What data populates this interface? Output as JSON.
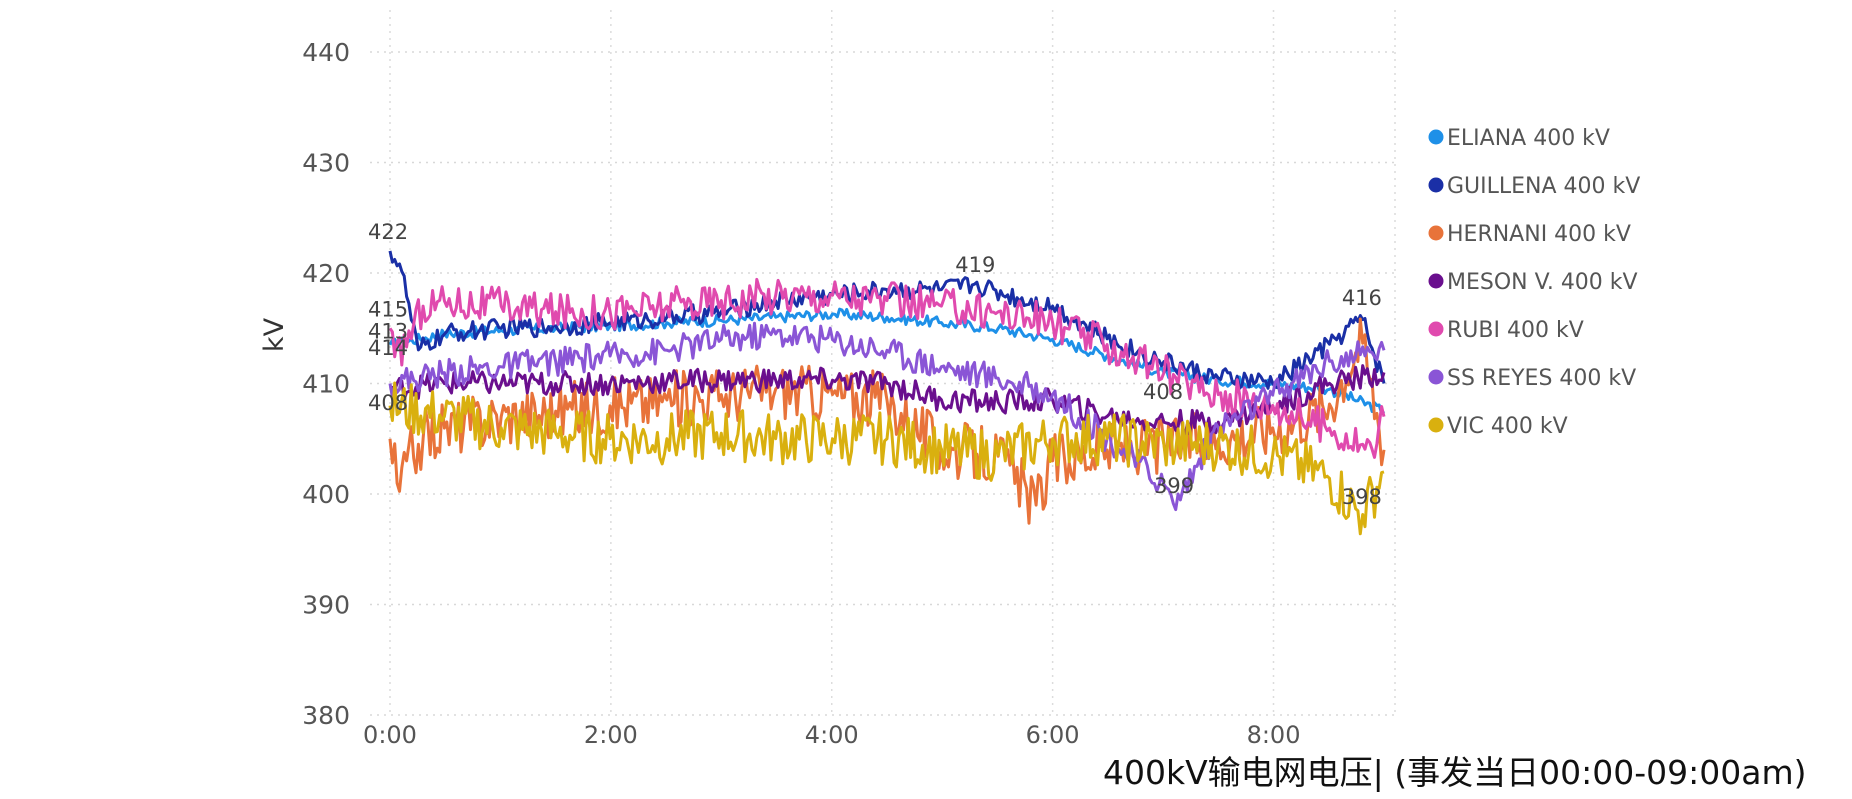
{
  "caption": "400kV输电网电压| (事发当日00:00-09:00am)",
  "chart_data": {
    "type": "line",
    "ylabel": "kV",
    "xlabel": "",
    "ylim": [
      380,
      440
    ],
    "xlim": [
      0,
      9.1
    ],
    "yticks": [
      380,
      390,
      400,
      410,
      420,
      430,
      440
    ],
    "ytick_labels": [
      "380",
      "390",
      "400",
      "410",
      "420",
      "430",
      "440"
    ],
    "xticks": [
      0,
      2,
      4,
      6,
      8
    ],
    "xtick_labels": [
      "0:00",
      "2:00",
      "4:00",
      "6:00",
      "8:00"
    ],
    "grid": true,
    "legend_position": "right",
    "series": [
      {
        "name": "ELIANA 400 kV",
        "color": "#1E90E8",
        "x": [
          0,
          0.5,
          1,
          1.5,
          2,
          2.5,
          3,
          3.5,
          4,
          4.5,
          5,
          5.5,
          6,
          6.5,
          7,
          7.5,
          8,
          8.5,
          9
        ],
        "y": [
          413.5,
          414.5,
          414.8,
          415,
          415.2,
          415.5,
          415.7,
          416,
          416.3,
          416,
          415.5,
          415,
          414,
          412.5,
          411,
          410.3,
          410,
          409.5,
          407.5
        ]
      },
      {
        "name": "GUILLENA 400 kV",
        "color": "#1A2FA6",
        "x": [
          0,
          0.1,
          0.25,
          0.5,
          1,
          1.5,
          2,
          2.5,
          3,
          3.5,
          4,
          4.5,
          5,
          5.3,
          5.6,
          6,
          6.5,
          7,
          7.5,
          8,
          8.5,
          8.8,
          9
        ],
        "y": [
          422,
          420.5,
          413,
          414.5,
          415,
          415.2,
          415.5,
          416,
          416.5,
          417.5,
          418,
          418.5,
          418.5,
          419,
          418,
          417,
          414,
          412,
          410.5,
          410,
          413.5,
          416,
          410
        ]
      },
      {
        "name": "HERNANI 400 kV",
        "color": "#E8733A",
        "x": [
          0,
          0.08,
          0.15,
          0.3,
          0.5,
          1,
          1.5,
          2,
          2.5,
          3,
          3.5,
          4,
          4.5,
          5,
          5.5,
          5.85,
          6,
          6.5,
          7,
          7.5,
          8,
          8.5,
          8.8,
          9
        ],
        "y": [
          405,
          400,
          403,
          405,
          406,
          407,
          407.5,
          408,
          408.5,
          409,
          409.5,
          409,
          408.5,
          404,
          403.5,
          399,
          403,
          404,
          404.5,
          405,
          406,
          408,
          414,
          404
        ]
      },
      {
        "name": "MESON V. 400 kV",
        "color": "#6A0F8E",
        "x": [
          0,
          0.5,
          1,
          1.5,
          2,
          2.5,
          3,
          3.5,
          4,
          4.5,
          5,
          5.5,
          6,
          6.5,
          7,
          7.5,
          8,
          8.5,
          9
        ],
        "y": [
          409.5,
          410,
          410,
          410,
          410,
          410.2,
          410.3,
          410.3,
          410.3,
          410,
          408.5,
          408.3,
          408.5,
          407,
          406.5,
          406.5,
          408,
          410,
          411
        ]
      },
      {
        "name": "RUBI 400 kV",
        "color": "#E04AAE",
        "x": [
          0,
          0.05,
          0.3,
          0.5,
          1,
          1.5,
          2,
          2.5,
          3,
          3.5,
          4,
          4.5,
          5,
          5.5,
          6,
          6.5,
          7,
          7.5,
          8,
          8.5,
          8.9,
          9
        ],
        "y": [
          415,
          412,
          417,
          417.5,
          417,
          416.5,
          416.5,
          417,
          417.5,
          418,
          418,
          417.5,
          417,
          416.5,
          415.5,
          413.5,
          411,
          409,
          408,
          406,
          404,
          407
        ]
      },
      {
        "name": "SS REYES 400 kV",
        "color": "#8A55D6",
        "x": [
          0,
          0.5,
          1,
          1.5,
          2,
          2.5,
          3,
          3.5,
          4,
          4.5,
          5,
          5.5,
          6,
          6.5,
          7,
          7.1,
          7.5,
          8,
          8.5,
          9
        ],
        "y": [
          410,
          411,
          411.5,
          412,
          412.5,
          413,
          414,
          414.5,
          414,
          413,
          411.5,
          410.5,
          409,
          405,
          401,
          399,
          406,
          409,
          412,
          413
        ]
      },
      {
        "name": "VIC 400 kV",
        "color": "#D9B00F",
        "x": [
          0,
          0.5,
          1,
          1.5,
          2,
          2.5,
          3,
          3.5,
          4,
          4.5,
          5,
          5.5,
          6,
          6.5,
          7,
          7.5,
          8,
          8.5,
          8.8,
          9
        ],
        "y": [
          408,
          407,
          406,
          405.5,
          405,
          405,
          405.5,
          405,
          405,
          405,
          404,
          403.5,
          405,
          405,
          404.5,
          404.5,
          403.5,
          401.5,
          398,
          402
        ]
      }
    ],
    "annotations": [
      {
        "text": "422",
        "x": 0,
        "y": 422
      },
      {
        "text": "415",
        "x": 0,
        "y": 415
      },
      {
        "text": "413",
        "x": 0,
        "y": 413
      },
      {
        "text": "414",
        "x": 0,
        "y": 411.5
      },
      {
        "text": "408",
        "x": 0,
        "y": 406.5
      },
      {
        "text": "419",
        "x": 5.3,
        "y": 419
      },
      {
        "text": "416",
        "x": 8.8,
        "y": 416
      },
      {
        "text": "408",
        "x": 7.0,
        "y": 407.5
      },
      {
        "text": "399",
        "x": 7.1,
        "y": 399
      },
      {
        "text": "398",
        "x": 8.8,
        "y": 398
      }
    ]
  }
}
